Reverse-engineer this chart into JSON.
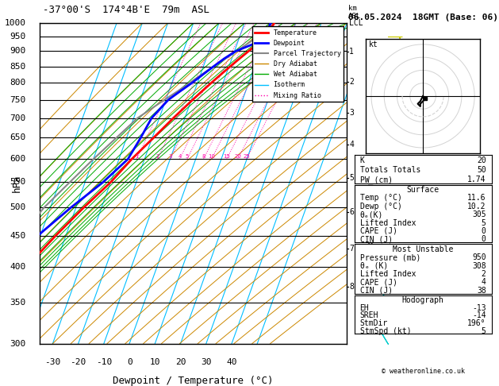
{
  "title_left": "-37°00'S  174°4B'E  79m  ASL",
  "title_right": "06.05.2024  18GMT (Base: 06)",
  "xlabel": "Dewpoint / Temperature (°C)",
  "ylabel_left": "hPa",
  "bg_color": "#ffffff",
  "plot_bg": "#ffffff",
  "pressure_levels": [
    300,
    350,
    400,
    450,
    500,
    550,
    600,
    650,
    700,
    750,
    800,
    850,
    900,
    950,
    1000
  ],
  "pressure_ticks": [
    300,
    350,
    400,
    450,
    500,
    550,
    600,
    650,
    700,
    750,
    800,
    850,
    900,
    950,
    1000
  ],
  "temp_range": [
    -35,
    40
  ],
  "temp_ticks": [
    -30,
    -20,
    -10,
    0,
    10,
    20,
    30,
    40
  ],
  "skew_factor": 45,
  "isotherm_color": "#00bfff",
  "dry_adiabat_color": "#cc8800",
  "wet_adiabat_color": "#00aa00",
  "mixing_ratio_color": "#ff00aa",
  "mixing_ratio_values": [
    1,
    2,
    3,
    4,
    5,
    8,
    10,
    15,
    20,
    25
  ],
  "temp_profile_p": [
    1000,
    975,
    950,
    925,
    900,
    875,
    850,
    825,
    800,
    775,
    750,
    700,
    650,
    600,
    550,
    500,
    450,
    400,
    350,
    300
  ],
  "temp_profile_t": [
    11.6,
    11.0,
    10.2,
    8.0,
    5.5,
    3.0,
    0.5,
    -2.0,
    -4.5,
    -7.0,
    -9.5,
    -14.5,
    -19.5,
    -25.0,
    -30.0,
    -37.0,
    -44.0,
    -51.0,
    -57.0,
    -58.0
  ],
  "dewp_profile_p": [
    1000,
    975,
    950,
    925,
    900,
    875,
    850,
    825,
    800,
    775,
    750,
    700,
    650,
    600,
    550,
    500,
    450,
    400,
    350,
    300
  ],
  "dewp_profile_t": [
    10.2,
    10.0,
    9.5,
    6.5,
    0.5,
    -3.0,
    -6.0,
    -9.0,
    -12.0,
    -15.5,
    -19.0,
    -23.0,
    -24.5,
    -26.5,
    -33.0,
    -42.0,
    -51.0,
    -57.0,
    -62.0,
    -65.0
  ],
  "parcel_profile_p": [
    1000,
    975,
    950,
    925,
    900,
    875,
    850,
    825,
    800,
    775,
    750,
    700,
    650,
    600,
    550,
    500,
    450,
    400,
    350,
    300
  ],
  "parcel_profile_t": [
    11.6,
    9.5,
    7.0,
    4.0,
    0.8,
    -2.5,
    -6.0,
    -9.5,
    -13.0,
    -16.5,
    -20.5,
    -28.5,
    -34.0,
    -40.0,
    -46.0,
    -52.5,
    -57.5,
    -61.0,
    -65.0,
    -66.0
  ],
  "temp_color": "#ff0000",
  "dewp_color": "#0000ff",
  "parcel_color": "#888888",
  "km_ticks": [
    1,
    2,
    3,
    4,
    5,
    6,
    7,
    8
  ],
  "km_pressures": [
    898,
    803,
    715,
    634,
    559,
    491,
    428,
    371
  ],
  "stats": {
    "K": 20,
    "Totals_Totals": 50,
    "PW_cm": 1.74,
    "Surface_Temp": 11.6,
    "Surface_Dewp": 10.2,
    "Surface_theta_e": 305,
    "Surface_LI": 5,
    "Surface_CAPE": 0,
    "Surface_CIN": 0,
    "MU_Pressure": 950,
    "MU_theta_e": 308,
    "MU_LI": 2,
    "MU_CAPE": 4,
    "MU_CIN": 38,
    "EH": -13,
    "SREH": -14,
    "StmDir": 196,
    "StmSpd": 5
  }
}
